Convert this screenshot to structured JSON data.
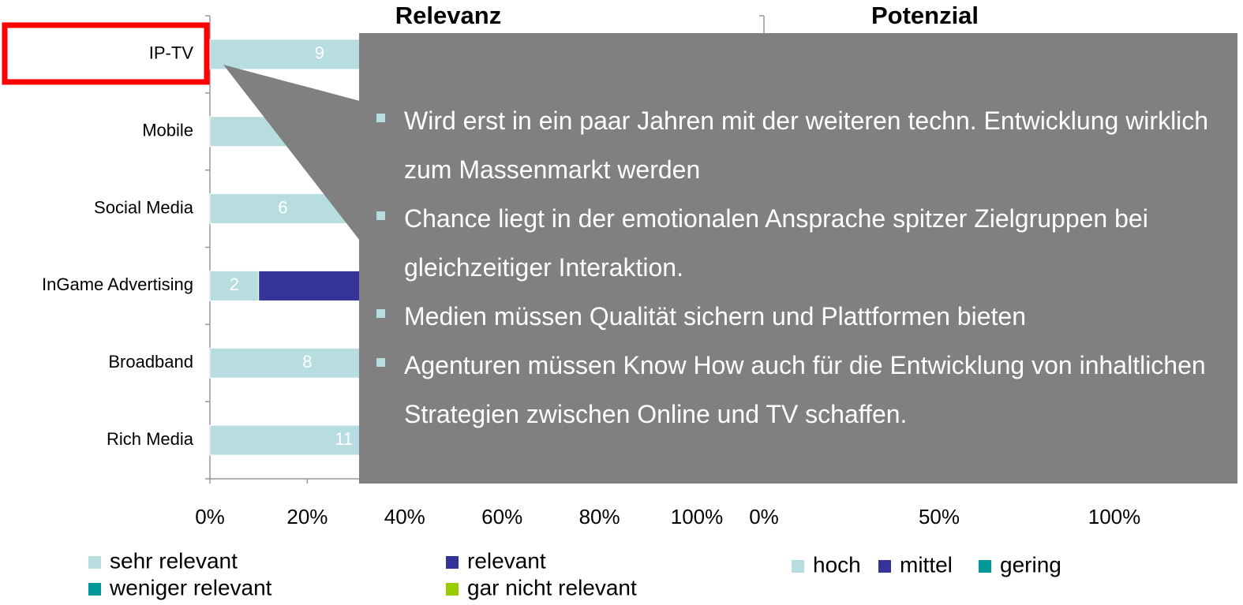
{
  "chart_data": [
    {
      "type": "bar",
      "title": "Relevanz",
      "categories": [
        "IP-TV",
        "Mobile",
        "Social Media",
        "InGame Advertising",
        "Broadband",
        "Rich Media"
      ],
      "series": [
        {
          "name": "sehr relevant",
          "color": "#b7dde1",
          "values": [
            9,
            7,
            6,
            2,
            8,
            11
          ]
        },
        {
          "name": "relevant",
          "color": "#333399",
          "values": [
            null,
            null,
            null,
            18,
            null,
            null
          ]
        },
        {
          "name": "weniger relevant",
          "color": "#009999",
          "values": [
            null,
            null,
            null,
            null,
            null,
            null
          ]
        },
        {
          "name": "gar nicht relevant",
          "color": "#99cc00",
          "values": [
            null,
            null,
            null,
            null,
            null,
            null
          ]
        }
      ],
      "xlim": [
        0,
        20
      ],
      "xticks": [
        {
          "value": 0,
          "label": "0%"
        },
        {
          "value": 4,
          "label": "20%"
        },
        {
          "value": 8,
          "label": "40%"
        },
        {
          "value": 12,
          "label": "60%"
        },
        {
          "value": 16,
          "label": "80%"
        },
        {
          "value": 20,
          "label": "100%"
        }
      ],
      "highlight": "IP-TV"
    },
    {
      "type": "bar",
      "title": "Potenzial",
      "series": [
        {
          "name": "hoch",
          "color": "#b7dde1"
        },
        {
          "name": "mittel",
          "color": "#333399"
        },
        {
          "name": "gering",
          "color": "#009999"
        }
      ],
      "xlim": [
        0,
        100
      ],
      "xticks": [
        {
          "value": 0,
          "label": "0%"
        },
        {
          "value": 50,
          "label": "50%"
        },
        {
          "value": 100,
          "label": "100%"
        }
      ]
    }
  ],
  "callout": {
    "bullets": [
      "Wird erst in ein paar Jahren mit der weiteren techn. Entwicklung wirklich zum Massenmarkt werden",
      "Chance liegt in der emotionalen Ansprache spitzer Zielgruppen bei gleichzeitiger Interaktion.",
      "Medien müssen Qualität sichern und Plattformen bieten",
      "Agenturen müssen Know How auch für die Entwicklung von inhaltlichen Strategien zwischen Online und TV schaffen."
    ]
  }
}
